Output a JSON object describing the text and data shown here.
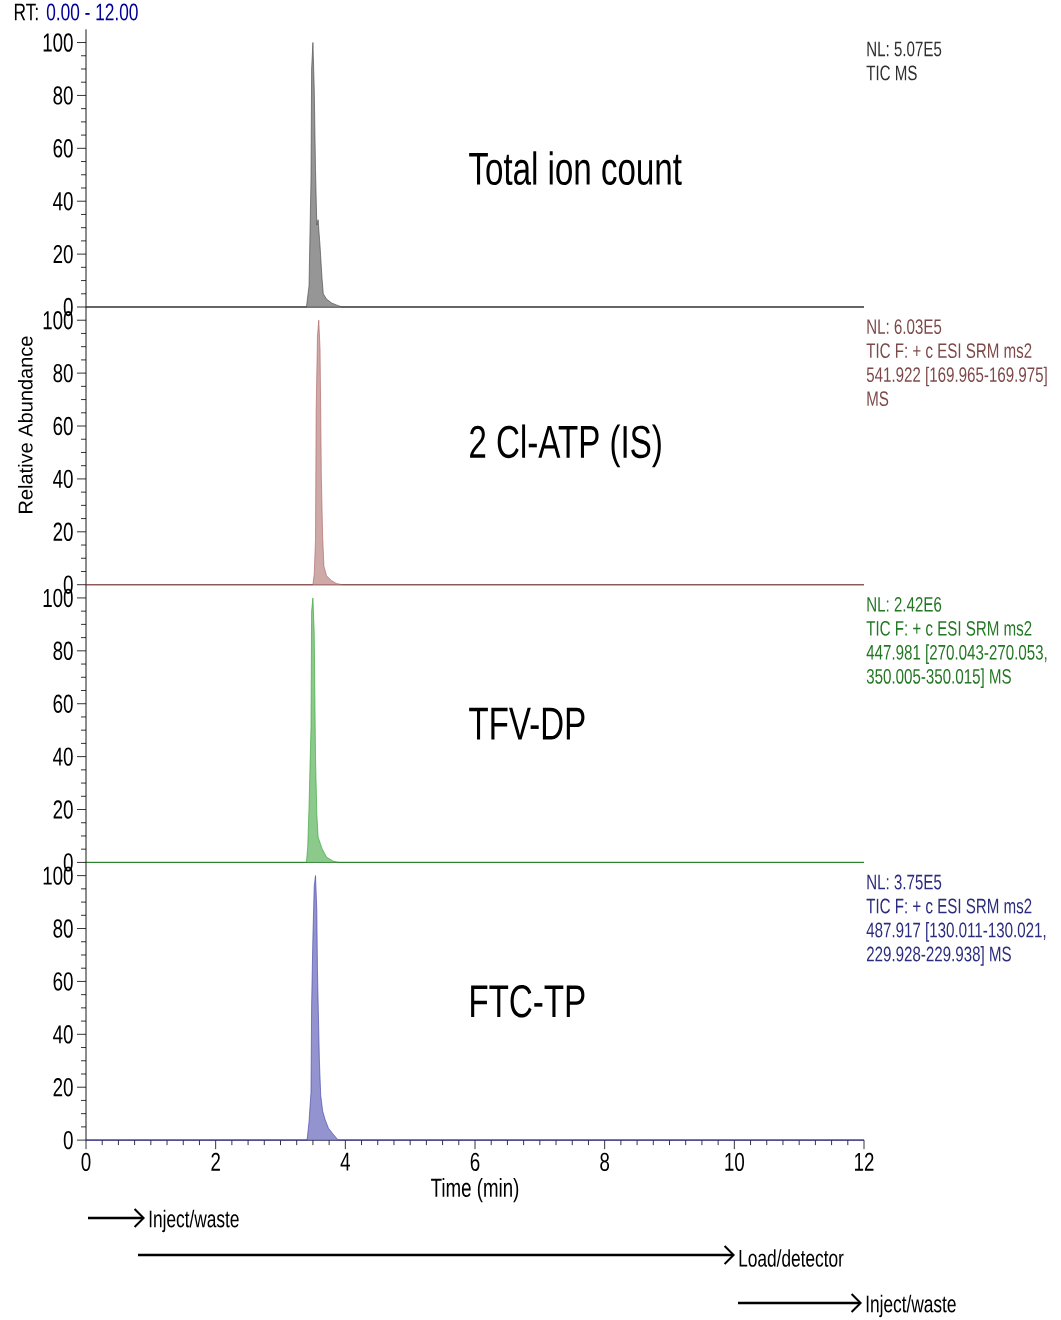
{
  "chart_data": [
    {
      "type": "area",
      "title": "Total ion count",
      "ylabel": "Relative Abundance",
      "color": "#404040",
      "tick_labels": "y",
      "annotations": [
        "RT:",
        "0.00 - 12.00",
        "NL: 5.07E5",
        "TIC  MS"
      ],
      "x": [
        0,
        3.4,
        3.44,
        3.47,
        3.48,
        3.5,
        3.52,
        3.54,
        3.56,
        3.58,
        3.61,
        3.64,
        3.66,
        3.71,
        3.79,
        3.86,
        3.95,
        12
      ],
      "values": [
        0,
        0,
        8,
        48,
        90,
        100,
        83,
        52,
        31,
        33,
        23,
        11,
        5,
        3,
        1.5,
        0.8,
        0,
        0
      ],
      "xlim": [
        0,
        12
      ],
      "ylim": [
        0,
        105
      ],
      "yticks": [
        0,
        20,
        40,
        60,
        80,
        100
      ]
    },
    {
      "type": "area",
      "title": "2 Cl-ATP (IS)",
      "color": "#a86060",
      "tick_labels": "y",
      "annotations": [
        "NL: 6.03E5",
        "TIC F: + c ESI SRM ms2",
        "541.922 [169.965-169.975]",
        "MS"
      ],
      "x": [
        0,
        3.5,
        3.52,
        3.54,
        3.55,
        3.57,
        3.59,
        3.61,
        3.63,
        3.65,
        3.67,
        3.71,
        3.79,
        3.86,
        3.95,
        12
      ],
      "values": [
        0,
        0,
        4,
        17,
        66,
        94,
        100,
        89,
        41,
        18,
        7,
        3.4,
        1.5,
        0.5,
        0,
        0
      ],
      "xlim": [
        0,
        12
      ],
      "ylim": [
        0,
        105
      ],
      "yticks": [
        0,
        20,
        40,
        60,
        80,
        100
      ]
    },
    {
      "type": "area",
      "title": "TFV-DP",
      "color": "#2e9e2e",
      "tick_labels": "y",
      "annotations": [
        "NL: 2.42E6",
        "TIC F: + c ESI SRM ms2",
        "447.981 [270.043-270.053,",
        "350.005-350.015]  MS"
      ],
      "x": [
        0,
        3.4,
        3.42,
        3.44,
        3.47,
        3.48,
        3.5,
        3.52,
        3.54,
        3.56,
        3.58,
        3.64,
        3.71,
        3.81,
        3.9,
        12
      ],
      "values": [
        0,
        0,
        6,
        21,
        51,
        95,
        100,
        87,
        40,
        18.5,
        9.6,
        5.3,
        2,
        0.5,
        0,
        0
      ],
      "xlim": [
        0,
        12
      ],
      "ylim": [
        0,
        105
      ],
      "yticks": [
        0,
        20,
        40,
        60,
        80,
        100
      ]
    },
    {
      "type": "area",
      "title": "FTC-TP",
      "xlabel": "Time (min)",
      "color": "#3a3aa8",
      "annotations": [
        "NL: 3.75E5",
        "TIC F: + c ESI SRM ms2",
        "487.917 [130.011-130.021,",
        "229.928-229.938]  MS",
        "Inject/waste",
        "Load/detector",
        "Inject/waste"
      ],
      "x": [
        0,
        3.41,
        3.44,
        3.47,
        3.48,
        3.5,
        3.52,
        3.54,
        3.56,
        3.57,
        3.6,
        3.62,
        3.65,
        3.69,
        3.74,
        3.81,
        3.89,
        12
      ],
      "values": [
        0,
        0,
        7,
        18,
        51,
        77,
        96,
        100,
        87,
        64,
        30,
        17,
        11,
        7.6,
        4.5,
        2.3,
        0,
        0
      ],
      "xlim": [
        0,
        12
      ],
      "ylim": [
        0,
        105
      ],
      "xticks": [
        0,
        2,
        4,
        6,
        8,
        10,
        12
      ],
      "yticks": [
        0,
        20,
        40,
        60,
        80,
        100
      ]
    }
  ]
}
